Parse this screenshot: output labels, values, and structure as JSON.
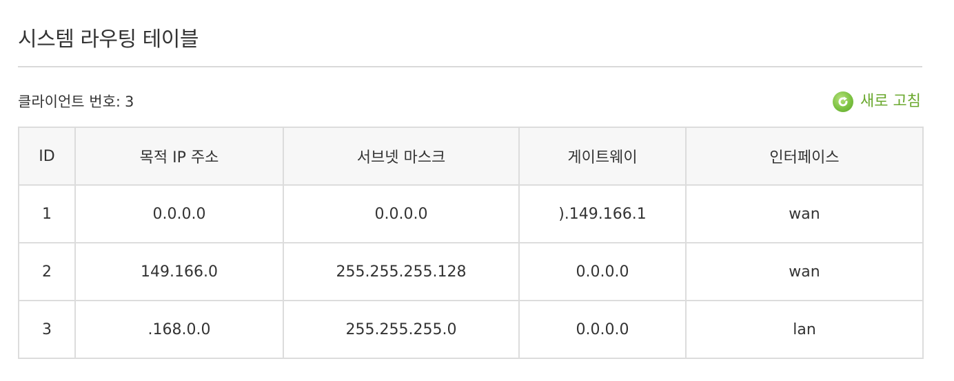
{
  "page": {
    "title": "시스템 라우팅 테이블"
  },
  "client": {
    "label": "클라이언트 번호:",
    "value": "3"
  },
  "refresh": {
    "label": "새로 고침",
    "icon": "refresh-icon",
    "color": "#6aa82e"
  },
  "table": {
    "headers": [
      "ID",
      "목적 IP 주소",
      "서브넷 마스크",
      "게이트웨이",
      "인터페이스"
    ],
    "rows": [
      [
        "1",
        "0.0.0.0",
        "0.0.0.0",
        ").149.166.1",
        "wan"
      ],
      [
        "2",
        "149.166.0",
        "255.255.255.128",
        "0.0.0.0",
        "wan"
      ],
      [
        "3",
        ".168.0.0",
        "255.255.255.0",
        "0.0.0.0",
        "lan"
      ]
    ]
  }
}
